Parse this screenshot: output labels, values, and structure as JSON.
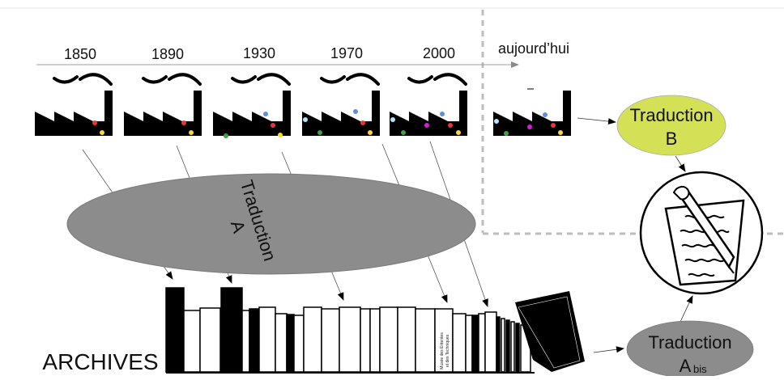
{
  "timeline": {
    "years": [
      "1850",
      "1890",
      "1930",
      "1970",
      "2000"
    ],
    "today_label": "aujourd’hui"
  },
  "translations": {
    "a_label_1": "Traduction",
    "a_label_2": "A",
    "b_label_1": "Traduction",
    "b_label_2": "B",
    "abis_label_1": "Traduction",
    "abis_label_2": "A",
    "abis_sub": "bis"
  },
  "archives_label": "ARCHIVES",
  "book_spine_text": [
    "Musée des Ententes",
    "et des Techniques"
  ],
  "colors": {
    "ellipse_a": "#8c8c8c",
    "ellipse_b": "#d4e157",
    "ellipse_abis": "#8c8c8c",
    "dot_red": "#e53935",
    "dot_yellow": "#fdd835",
    "dot_blue": "#5c8fd6",
    "dot_green": "#43a047",
    "dot_lightblue": "#b3e5fc",
    "dot_magenta": "#d81bd8"
  },
  "icons": [
    "factory-icon",
    "writing-hand-icon",
    "books-icon"
  ]
}
